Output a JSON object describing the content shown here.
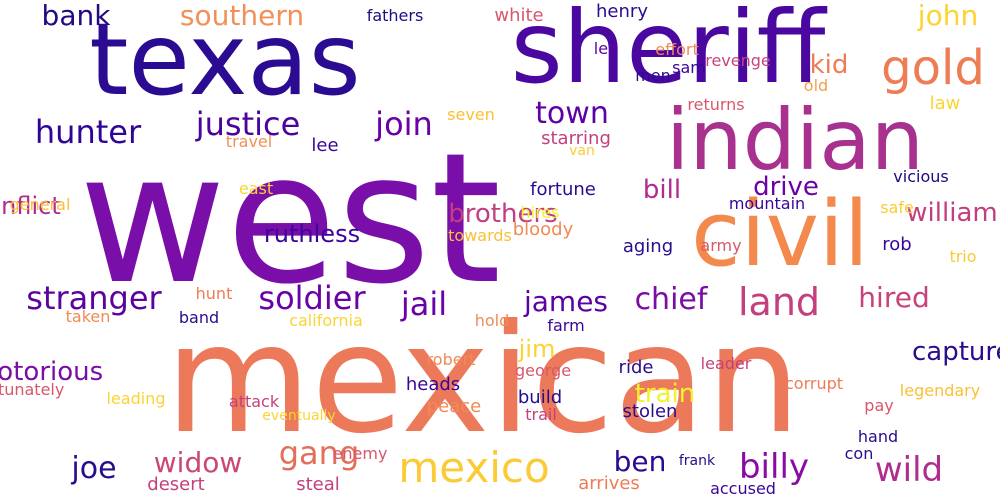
{
  "words": [
    {
      "text": "west",
      "color": "#7a0ea8"
    },
    {
      "text": "mexican",
      "color": "#ec7a5a"
    },
    {
      "text": "texas",
      "color": "#2b0b91"
    },
    {
      "text": "sheriff",
      "color": "#4a08a0"
    },
    {
      "text": "indian",
      "color": "#a8318f"
    },
    {
      "text": "civil",
      "color": "#f4894d"
    },
    {
      "text": "gold",
      "color": "#ee7c55"
    },
    {
      "text": "mexico",
      "color": "#fbcb35"
    },
    {
      "text": "stranger",
      "color": "#5b039e"
    },
    {
      "text": "soldier",
      "color": "#6a01a6"
    },
    {
      "text": "hunter",
      "color": "#2e0596"
    },
    {
      "text": "justice",
      "color": "#4b039e"
    },
    {
      "text": "join",
      "color": "#6a00a8"
    },
    {
      "text": "town",
      "color": "#5d01a6"
    },
    {
      "text": "southern",
      "color": "#f29058"
    },
    {
      "text": "bank",
      "color": "#24097f"
    },
    {
      "text": "john",
      "color": "#fbd434"
    },
    {
      "text": "land",
      "color": "#c43f7d"
    },
    {
      "text": "hired",
      "color": "#c8437c"
    },
    {
      "text": "chief",
      "color": "#7a0da5"
    },
    {
      "text": "james",
      "color": "#5a02a3"
    },
    {
      "text": "jail",
      "color": "#6a00a8"
    },
    {
      "text": "gang",
      "color": "#e27059"
    },
    {
      "text": "widow",
      "color": "#cb4778"
    },
    {
      "text": "joe",
      "color": "#2a0c8d"
    },
    {
      "text": "billy",
      "color": "#8b0aa5"
    },
    {
      "text": "wild",
      "color": "#ae2d8f"
    },
    {
      "text": "ben",
      "color": "#2e0991"
    },
    {
      "text": "train",
      "color": "#f2f32a"
    },
    {
      "text": "jim",
      "color": "#fbd434"
    },
    {
      "text": "ruthless",
      "color": "#3a059a"
    },
    {
      "text": "drive",
      "color": "#6b02a7"
    },
    {
      "text": "bill",
      "color": "#b12a90"
    },
    {
      "text": "kid",
      "color": "#ee7c55"
    },
    {
      "text": "captured",
      "color": "#2a0c8d"
    },
    {
      "text": "william",
      "color": "#c13f80"
    },
    {
      "text": "conflict",
      "color": "#b12a90"
    },
    {
      "text": "notorious",
      "color": "#7a0da5"
    },
    {
      "text": "brothers",
      "color": "#c13f80"
    },
    {
      "text": "fathers",
      "color": "#24097f"
    },
    {
      "text": "white",
      "color": "#d8576b"
    },
    {
      "text": "henry",
      "color": "#2a0c8d"
    },
    {
      "text": "led",
      "color": "#5a02a3"
    },
    {
      "text": "revenge",
      "color": "#c8437c"
    },
    {
      "text": "effort",
      "color": "#f08a56"
    },
    {
      "text": "sam",
      "color": "#3a059a"
    },
    {
      "text": "men",
      "color": "#2a0c8d"
    },
    {
      "text": "old",
      "color": "#f4a04e"
    },
    {
      "text": "returns",
      "color": "#d8576b"
    },
    {
      "text": "law",
      "color": "#fbd434"
    },
    {
      "text": "starring",
      "color": "#c43f7d"
    },
    {
      "text": "seven",
      "color": "#fbc035"
    },
    {
      "text": "lee",
      "color": "#3a059a"
    },
    {
      "text": "travel",
      "color": "#f29058"
    },
    {
      "text": "van",
      "color": "#fbcb35"
    },
    {
      "text": "fortune",
      "color": "#2a0c8d"
    },
    {
      "text": "vicious",
      "color": "#24097f"
    },
    {
      "text": "east",
      "color": "#fbd434"
    },
    {
      "text": "general",
      "color": "#fbc035"
    },
    {
      "text": "hires",
      "color": "#f2f32a"
    },
    {
      "text": "bloody",
      "color": "#f08a56"
    },
    {
      "text": "towards",
      "color": "#fbc035"
    },
    {
      "text": "mountain",
      "color": "#3a059a"
    },
    {
      "text": "safe",
      "color": "#fbcb35"
    },
    {
      "text": "army",
      "color": "#d8576b"
    },
    {
      "text": "aging",
      "color": "#2a0c8d"
    },
    {
      "text": "rob",
      "color": "#3a059a"
    },
    {
      "text": "trio",
      "color": "#fbcb35"
    },
    {
      "text": "hunt",
      "color": "#ee7c55"
    },
    {
      "text": "taken",
      "color": "#f08a56"
    },
    {
      "text": "band",
      "color": "#2a0c8d"
    },
    {
      "text": "california",
      "color": "#fbd434"
    },
    {
      "text": "hold",
      "color": "#f08a56"
    },
    {
      "text": "farm",
      "color": "#3a059a"
    },
    {
      "text": "unfortunately",
      "color": "#d8576b"
    },
    {
      "text": "robert",
      "color": "#f08a56"
    },
    {
      "text": "george",
      "color": "#d8576b"
    },
    {
      "text": "leader",
      "color": "#c43f7d"
    },
    {
      "text": "ride",
      "color": "#2a0c8d"
    },
    {
      "text": "heads",
      "color": "#3a059a"
    },
    {
      "text": "build",
      "color": "#2a0c8d"
    },
    {
      "text": "peace",
      "color": "#f08a56"
    },
    {
      "text": "trail",
      "color": "#c43f7d"
    },
    {
      "text": "stolen",
      "color": "#2a0c8d"
    },
    {
      "text": "corrupt",
      "color": "#ee7c55"
    },
    {
      "text": "pay",
      "color": "#d8576b"
    },
    {
      "text": "legendary",
      "color": "#fbc035"
    },
    {
      "text": "leading",
      "color": "#fbd434"
    },
    {
      "text": "attack",
      "color": "#c43f7d"
    },
    {
      "text": "eventually",
      "color": "#fbd434"
    },
    {
      "text": "enemy",
      "color": "#d8576b"
    },
    {
      "text": "hand",
      "color": "#2a0c8d"
    },
    {
      "text": "con",
      "color": "#2a0c8d"
    },
    {
      "text": "frank",
      "color": "#2a0c8d"
    },
    {
      "text": "desert",
      "color": "#c43f7d"
    },
    {
      "text": "steal",
      "color": "#c43f7d"
    },
    {
      "text": "arrives",
      "color": "#ee7c55"
    },
    {
      "text": "accused",
      "color": "#3a059a"
    }
  ]
}
